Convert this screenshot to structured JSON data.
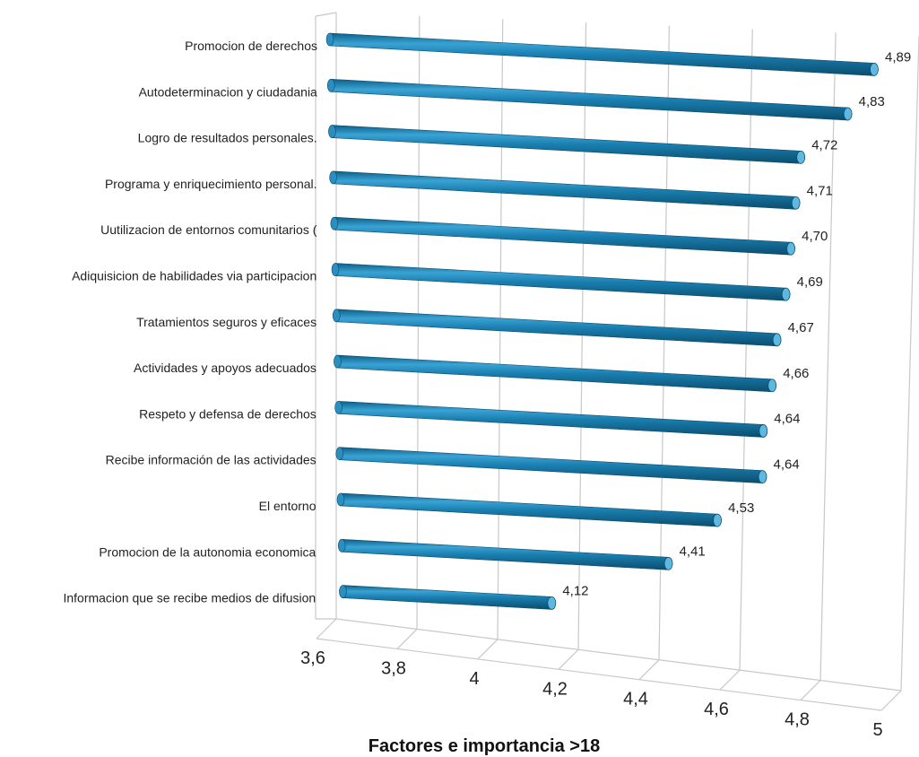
{
  "chart_data": {
    "type": "bar",
    "orientation": "horizontal",
    "style": "3d-cylinder",
    "title": "Factores e importancia >18",
    "xlim": [
      3.6,
      5
    ],
    "ticks": [
      "3,6",
      "3,8",
      "4",
      "4,2",
      "4,4",
      "4,6",
      "4,8",
      "5"
    ],
    "tick_values": [
      3.6,
      3.8,
      4.0,
      4.2,
      4.4,
      4.6,
      4.8,
      5.0
    ],
    "bar_color": "#1a7fb0",
    "categories": [
      "Promocion de derechos",
      "Autodeterminacion y ciudadania",
      "Logro de resultados personales.",
      "Programa y enriquecimiento personal.",
      "Uutilizacion de entornos comunitarios (",
      "Adiquisicion de habilidades via participacion",
      "Tratamientos seguros y eficaces",
      "Actividades y apoyos adecuados",
      "Respeto y defensa de  derechos",
      "Recibe información de las actividades",
      "El entorno",
      "Promocion de la autonomia economica",
      "Informacion que se recibe medios de difusion"
    ],
    "values": [
      4.89,
      4.83,
      4.72,
      4.71,
      4.7,
      4.69,
      4.67,
      4.66,
      4.64,
      4.64,
      4.53,
      4.41,
      4.12
    ],
    "value_labels": [
      "4,89",
      "4,83",
      "4,72",
      "4,71",
      "4,70",
      "4,69",
      "4,67",
      "4,66",
      "4,64",
      "4,64",
      "4,53",
      "4,41",
      "4,12"
    ]
  }
}
